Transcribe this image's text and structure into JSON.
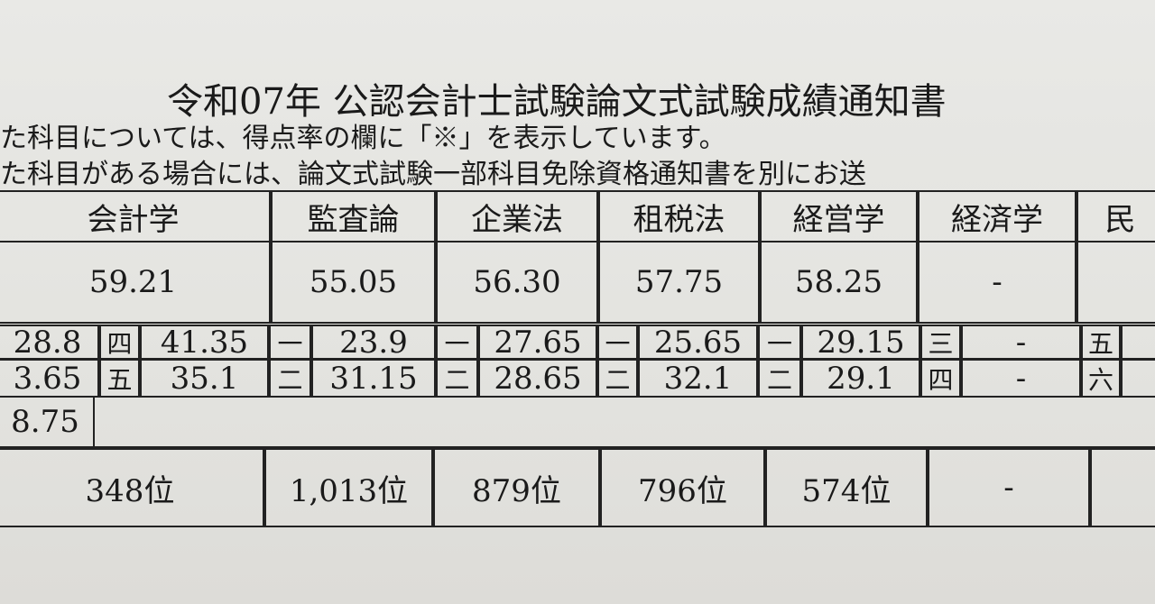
{
  "document": {
    "title": "令和07年 公認会計士試験論文式試験成績通知書",
    "notes": [
      "た科目については、得点率の欄に「※」を表示しています。",
      "た科目がある場合には、論文式試験一部科目免除資格通知書を別にお送"
    ]
  },
  "table": {
    "subjects": [
      "会計学",
      "監査論",
      "企業法",
      "租税法",
      "経営学",
      "経済学",
      "民"
    ],
    "scores": [
      "59.21",
      "55.05",
      "56.30",
      "57.75",
      "58.25",
      "-",
      ""
    ],
    "question_rows": [
      [
        [
          "",
          "28.8"
        ],
        [
          "四",
          "41.35"
        ],
        [
          "一",
          "23.9"
        ],
        [
          "一",
          "27.65"
        ],
        [
          "一",
          "25.65"
        ],
        [
          "一",
          "29.15"
        ],
        [
          "三",
          "-"
        ],
        [
          "五",
          ""
        ]
      ],
      [
        [
          "",
          "3.65"
        ],
        [
          "五",
          "35.1"
        ],
        [
          "二",
          "31.15"
        ],
        [
          "二",
          "28.65"
        ],
        [
          "二",
          "32.1"
        ],
        [
          "二",
          "29.1"
        ],
        [
          "四",
          "-"
        ],
        [
          "六",
          ""
        ]
      ],
      [
        [
          "",
          "8.75"
        ]
      ]
    ],
    "ranks": [
      "348位",
      "1,013位",
      "879位",
      "796位",
      "574位",
      "-",
      ""
    ]
  }
}
